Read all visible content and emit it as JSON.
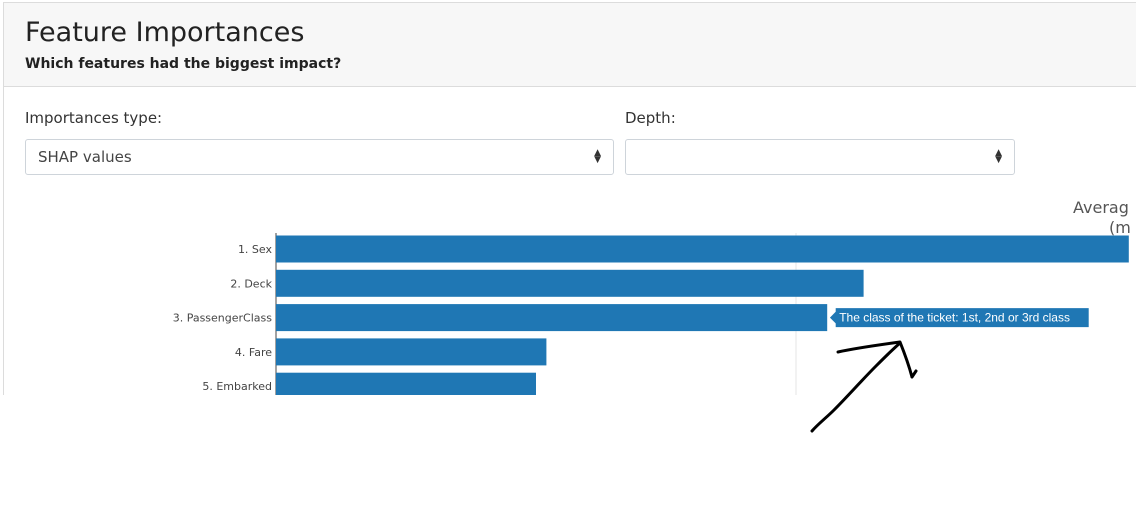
{
  "header": {
    "title": "Feature Importances",
    "subtitle": "Which features had the biggest impact?"
  },
  "controls": {
    "importances_type": {
      "label": "Importances type:",
      "value": "SHAP values"
    },
    "depth": {
      "label": "Depth:",
      "value": ""
    }
  },
  "chart_data": {
    "type": "bar",
    "orientation": "horizontal",
    "categories": [
      "1. Sex",
      "2. Deck",
      "3. PassengerClass",
      "4. Fare",
      "5. Embarked"
    ],
    "values": [
      1.64,
      1.13,
      1.06,
      0.52,
      0.5
    ],
    "xlabel": "Averag",
    "xlabel_line2": "(m",
    "bar_color": "#1f77b4",
    "grid": true,
    "hover_label": {
      "category": "3. PassengerClass",
      "text": "The class of the ticket: 1st, 2nd or 3rd class"
    }
  }
}
